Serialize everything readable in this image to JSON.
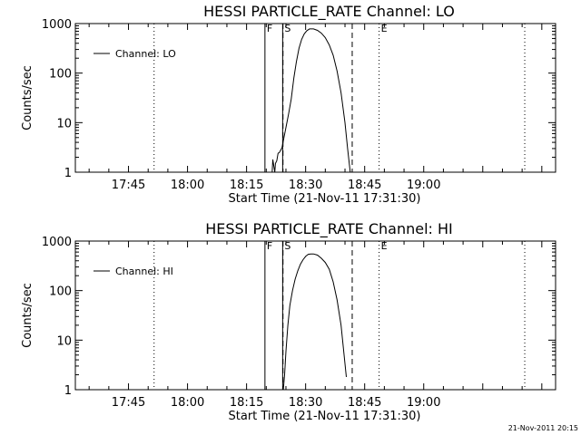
{
  "footer_stamp": "21-Nov-2011 20:15",
  "chart_data": [
    {
      "type": "line",
      "title": "HESSI PARTICLE_RATE Channel: LO",
      "xlabel": "Start Time (21-Nov-11 17:31:30)",
      "ylabel": "Counts/sec",
      "y_scale": "log",
      "ylim": [
        1,
        1000
      ],
      "xlim": [
        "17:31:30",
        "19:33:30"
      ],
      "x_ticks": [
        "17:45",
        "18:00",
        "18:15",
        "18:30",
        "18:45",
        "19:00"
      ],
      "y_ticks": [
        "1",
        "10",
        "100",
        "1000"
      ],
      "grid": false,
      "legend": {
        "position": "top-left",
        "entries": [
          "Channel: LO"
        ]
      },
      "event_markers": [
        {
          "label": "F",
          "time": "18:19:40",
          "style": "solid"
        },
        {
          "label": "S",
          "time": "18:24:10",
          "style": "solid"
        },
        {
          "label": "",
          "time": "18:24:15",
          "style": "dashed"
        },
        {
          "label": "",
          "time": "18:41:50",
          "style": "dashed"
        },
        {
          "label": "E",
          "time": "18:48:40",
          "style": "dotted"
        },
        {
          "label": "",
          "time": "17:51:30",
          "style": "dotted"
        },
        {
          "label": "",
          "time": "19:25:40",
          "style": "dotted"
        }
      ],
      "series": [
        {
          "name": "Channel: LO",
          "points": [
            [
              "18:21:30",
              1.0
            ],
            [
              "18:21:40",
              1.8
            ],
            [
              "18:22:00",
              1.2
            ],
            [
              "18:22:10",
              1.0
            ],
            [
              "18:22:20",
              1.5
            ],
            [
              "18:22:40",
              1.7
            ],
            [
              "18:23:00",
              2.4
            ],
            [
              "18:23:20",
              2.5
            ],
            [
              "18:23:40",
              2.8
            ],
            [
              "18:24:00",
              3.1
            ],
            [
              "18:24:30",
              5
            ],
            [
              "18:25:00",
              8
            ],
            [
              "18:25:40",
              15
            ],
            [
              "18:26:20",
              30
            ],
            [
              "18:27:00",
              80
            ],
            [
              "18:27:40",
              170
            ],
            [
              "18:28:20",
              320
            ],
            [
              "18:29:00",
              480
            ],
            [
              "18:29:40",
              620
            ],
            [
              "18:30:20",
              720
            ],
            [
              "18:31:00",
              780
            ],
            [
              "18:32:00",
              780
            ],
            [
              "18:33:00",
              730
            ],
            [
              "18:34:00",
              640
            ],
            [
              "18:35:00",
              520
            ],
            [
              "18:36:00",
              370
            ],
            [
              "18:37:00",
              230
            ],
            [
              "18:38:00",
              110
            ],
            [
              "18:39:00",
              40
            ],
            [
              "18:40:00",
              10
            ],
            [
              "18:40:40",
              3
            ],
            [
              "18:41:20",
              1.0
            ]
          ]
        }
      ]
    },
    {
      "type": "line",
      "title": "HESSI PARTICLE_RATE Channel: HI",
      "xlabel": "Start Time (21-Nov-11 17:31:30)",
      "ylabel": "Counts/sec",
      "y_scale": "log",
      "ylim": [
        1,
        1000
      ],
      "xlim": [
        "17:31:30",
        "19:33:30"
      ],
      "x_ticks": [
        "17:45",
        "18:00",
        "18:15",
        "18:30",
        "18:45",
        "19:00"
      ],
      "y_ticks": [
        "1",
        "10",
        "100",
        "1000"
      ],
      "grid": false,
      "legend": {
        "position": "top-left",
        "entries": [
          "Channel: HI"
        ]
      },
      "event_markers": [
        {
          "label": "F",
          "time": "18:19:40",
          "style": "solid"
        },
        {
          "label": "S",
          "time": "18:24:10",
          "style": "solid"
        },
        {
          "label": "",
          "time": "18:24:15",
          "style": "dashed"
        },
        {
          "label": "",
          "time": "18:41:50",
          "style": "dashed"
        },
        {
          "label": "E",
          "time": "18:48:40",
          "style": "dotted"
        },
        {
          "label": "",
          "time": "17:51:30",
          "style": "dotted"
        },
        {
          "label": "",
          "time": "19:25:40",
          "style": "dotted"
        }
      ],
      "series": [
        {
          "name": "Channel: HI",
          "points": [
            [
              "18:24:20",
              1.0
            ],
            [
              "18:24:40",
              2
            ],
            [
              "18:25:00",
              6
            ],
            [
              "18:25:30",
              20
            ],
            [
              "18:26:00",
              50
            ],
            [
              "18:26:40",
              100
            ],
            [
              "18:27:20",
              170
            ],
            [
              "18:28:00",
              250
            ],
            [
              "18:28:40",
              340
            ],
            [
              "18:29:20",
              420
            ],
            [
              "18:30:00",
              490
            ],
            [
              "18:30:40",
              540
            ],
            [
              "18:31:20",
              550
            ],
            [
              "18:32:00",
              550
            ],
            [
              "18:33:00",
              520
            ],
            [
              "18:34:00",
              450
            ],
            [
              "18:35:00",
              370
            ],
            [
              "18:36:00",
              270
            ],
            [
              "18:37:00",
              150
            ],
            [
              "18:38:00",
              65
            ],
            [
              "18:39:00",
              20
            ],
            [
              "18:39:40",
              6
            ],
            [
              "18:40:20",
              1.8
            ]
          ]
        }
      ]
    }
  ]
}
